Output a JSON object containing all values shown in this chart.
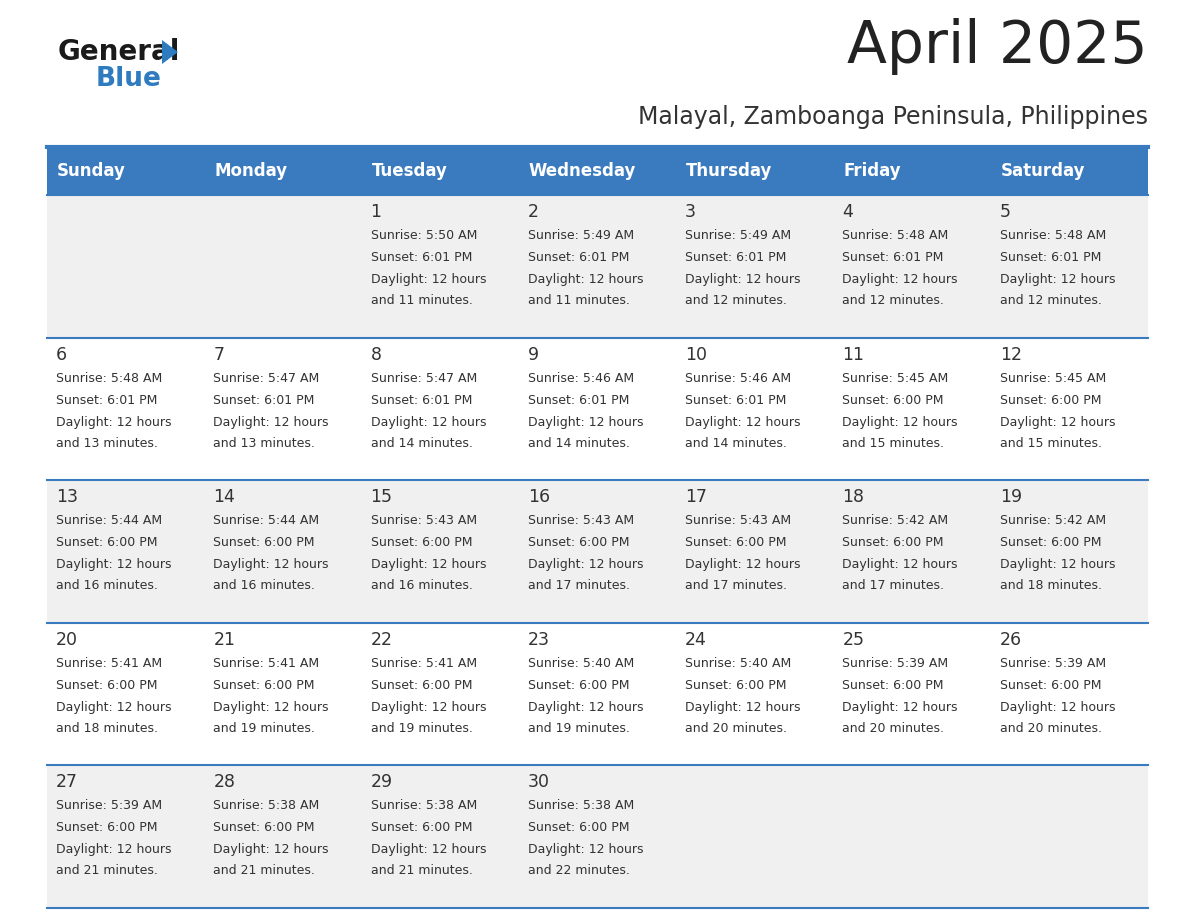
{
  "title": "April 2025",
  "subtitle": "Malayal, Zamboanga Peninsula, Philippines",
  "days_of_week": [
    "Sunday",
    "Monday",
    "Tuesday",
    "Wednesday",
    "Thursday",
    "Friday",
    "Saturday"
  ],
  "header_bg": "#3a7abf",
  "header_text": "#ffffff",
  "row_bg_odd": "#f0f0f0",
  "row_bg_even": "#ffffff",
  "cell_text_color": "#333333",
  "day_number_color": "#333333",
  "divider_color": "#3a7abf",
  "logo_general_color": "#1a1a1a",
  "logo_blue_color": "#2e7bbf",
  "logo_triangle_color": "#2e7bbf",
  "calendar_data": [
    [
      {
        "day": null,
        "sunrise": null,
        "sunset": null,
        "daylight_line2": null
      },
      {
        "day": null,
        "sunrise": null,
        "sunset": null,
        "daylight_line2": null
      },
      {
        "day": 1,
        "sunrise": "5:50 AM",
        "sunset": "6:01 PM",
        "daylight_line2": "and 11 minutes."
      },
      {
        "day": 2,
        "sunrise": "5:49 AM",
        "sunset": "6:01 PM",
        "daylight_line2": "and 11 minutes."
      },
      {
        "day": 3,
        "sunrise": "5:49 AM",
        "sunset": "6:01 PM",
        "daylight_line2": "and 12 minutes."
      },
      {
        "day": 4,
        "sunrise": "5:48 AM",
        "sunset": "6:01 PM",
        "daylight_line2": "and 12 minutes."
      },
      {
        "day": 5,
        "sunrise": "5:48 AM",
        "sunset": "6:01 PM",
        "daylight_line2": "and 12 minutes."
      }
    ],
    [
      {
        "day": 6,
        "sunrise": "5:48 AM",
        "sunset": "6:01 PM",
        "daylight_line2": "and 13 minutes."
      },
      {
        "day": 7,
        "sunrise": "5:47 AM",
        "sunset": "6:01 PM",
        "daylight_line2": "and 13 minutes."
      },
      {
        "day": 8,
        "sunrise": "5:47 AM",
        "sunset": "6:01 PM",
        "daylight_line2": "and 14 minutes."
      },
      {
        "day": 9,
        "sunrise": "5:46 AM",
        "sunset": "6:01 PM",
        "daylight_line2": "and 14 minutes."
      },
      {
        "day": 10,
        "sunrise": "5:46 AM",
        "sunset": "6:01 PM",
        "daylight_line2": "and 14 minutes."
      },
      {
        "day": 11,
        "sunrise": "5:45 AM",
        "sunset": "6:00 PM",
        "daylight_line2": "and 15 minutes."
      },
      {
        "day": 12,
        "sunrise": "5:45 AM",
        "sunset": "6:00 PM",
        "daylight_line2": "and 15 minutes."
      }
    ],
    [
      {
        "day": 13,
        "sunrise": "5:44 AM",
        "sunset": "6:00 PM",
        "daylight_line2": "and 16 minutes."
      },
      {
        "day": 14,
        "sunrise": "5:44 AM",
        "sunset": "6:00 PM",
        "daylight_line2": "and 16 minutes."
      },
      {
        "day": 15,
        "sunrise": "5:43 AM",
        "sunset": "6:00 PM",
        "daylight_line2": "and 16 minutes."
      },
      {
        "day": 16,
        "sunrise": "5:43 AM",
        "sunset": "6:00 PM",
        "daylight_line2": "and 17 minutes."
      },
      {
        "day": 17,
        "sunrise": "5:43 AM",
        "sunset": "6:00 PM",
        "daylight_line2": "and 17 minutes."
      },
      {
        "day": 18,
        "sunrise": "5:42 AM",
        "sunset": "6:00 PM",
        "daylight_line2": "and 17 minutes."
      },
      {
        "day": 19,
        "sunrise": "5:42 AM",
        "sunset": "6:00 PM",
        "daylight_line2": "and 18 minutes."
      }
    ],
    [
      {
        "day": 20,
        "sunrise": "5:41 AM",
        "sunset": "6:00 PM",
        "daylight_line2": "and 18 minutes."
      },
      {
        "day": 21,
        "sunrise": "5:41 AM",
        "sunset": "6:00 PM",
        "daylight_line2": "and 19 minutes."
      },
      {
        "day": 22,
        "sunrise": "5:41 AM",
        "sunset": "6:00 PM",
        "daylight_line2": "and 19 minutes."
      },
      {
        "day": 23,
        "sunrise": "5:40 AM",
        "sunset": "6:00 PM",
        "daylight_line2": "and 19 minutes."
      },
      {
        "day": 24,
        "sunrise": "5:40 AM",
        "sunset": "6:00 PM",
        "daylight_line2": "and 20 minutes."
      },
      {
        "day": 25,
        "sunrise": "5:39 AM",
        "sunset": "6:00 PM",
        "daylight_line2": "and 20 minutes."
      },
      {
        "day": 26,
        "sunrise": "5:39 AM",
        "sunset": "6:00 PM",
        "daylight_line2": "and 20 minutes."
      }
    ],
    [
      {
        "day": 27,
        "sunrise": "5:39 AM",
        "sunset": "6:00 PM",
        "daylight_line2": "and 21 minutes."
      },
      {
        "day": 28,
        "sunrise": "5:38 AM",
        "sunset": "6:00 PM",
        "daylight_line2": "and 21 minutes."
      },
      {
        "day": 29,
        "sunrise": "5:38 AM",
        "sunset": "6:00 PM",
        "daylight_line2": "and 21 minutes."
      },
      {
        "day": 30,
        "sunrise": "5:38 AM",
        "sunset": "6:00 PM",
        "daylight_line2": "and 22 minutes."
      },
      {
        "day": null,
        "sunrise": null,
        "sunset": null,
        "daylight_line2": null
      },
      {
        "day": null,
        "sunrise": null,
        "sunset": null,
        "daylight_line2": null
      },
      {
        "day": null,
        "sunrise": null,
        "sunset": null,
        "daylight_line2": null
      }
    ]
  ]
}
